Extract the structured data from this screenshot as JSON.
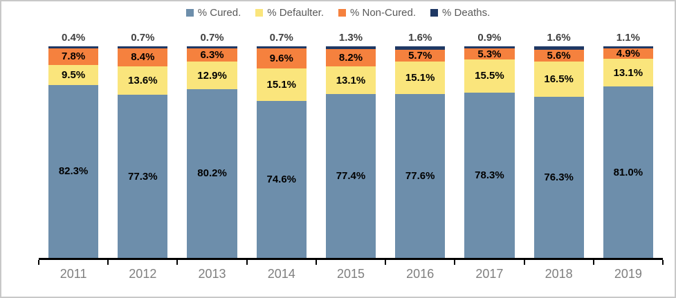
{
  "chart_data": {
    "type": "bar",
    "variant": "stacked-100-percent-column",
    "title": "",
    "xlabel": "",
    "ylabel": "",
    "ylim": [
      0,
      100
    ],
    "grid": false,
    "legend_position": "top",
    "value_suffix": "%",
    "value_decimals": 1,
    "categories": [
      "2011",
      "2012",
      "2013",
      "2014",
      "2015",
      "2016",
      "2017",
      "2018",
      "2019"
    ],
    "series": [
      {
        "name": "% Cured.",
        "color": "#6D8EAB",
        "label_placement": "inside",
        "values": [
          82.3,
          77.3,
          80.2,
          74.6,
          77.4,
          77.6,
          78.3,
          76.3,
          81.0
        ]
      },
      {
        "name": "% Defaulter.",
        "color": "#FAE57C",
        "label_placement": "inside",
        "values": [
          9.5,
          13.6,
          12.9,
          15.1,
          13.1,
          15.1,
          15.5,
          16.5,
          13.1
        ]
      },
      {
        "name": "% Non-Cured.",
        "color": "#F5813E",
        "label_placement": "inside",
        "values": [
          7.8,
          8.4,
          6.3,
          9.6,
          8.2,
          5.7,
          5.3,
          5.6,
          4.9
        ]
      },
      {
        "name": "% Deaths.",
        "color": "#1F3864",
        "label_placement": "above",
        "values": [
          0.4,
          0.7,
          0.7,
          0.7,
          1.3,
          1.6,
          0.9,
          1.6,
          1.1
        ]
      }
    ]
  },
  "colors": {
    "axis": "#000000",
    "tick_label": "#7F7F7F",
    "legend_text": "#595959",
    "above_bar_label": "#404040",
    "inside_bar_label": "#000000",
    "frame_border": "#C8C8C8",
    "background": "#FFFFFF"
  }
}
